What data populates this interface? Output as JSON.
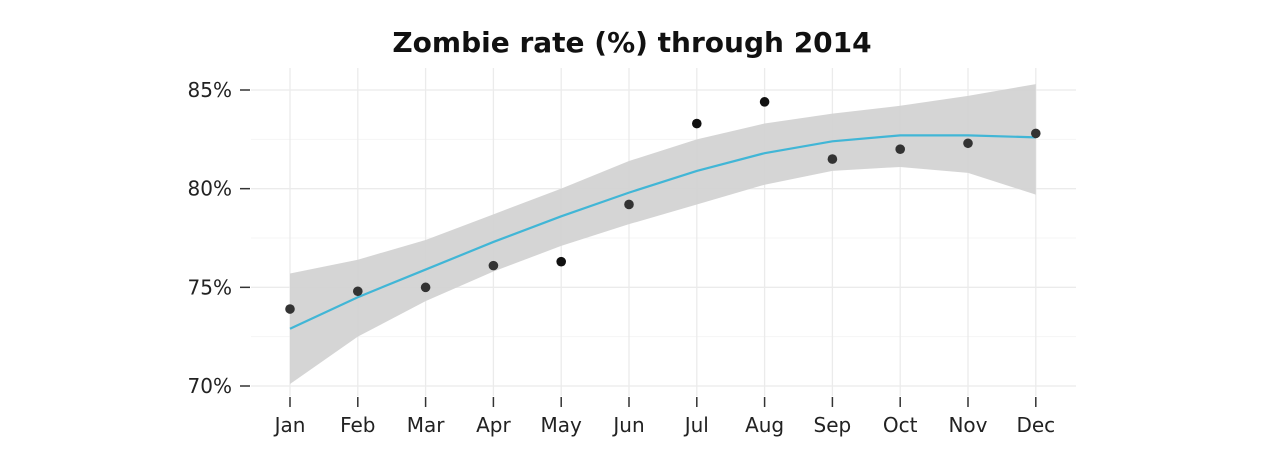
{
  "chart_data": {
    "type": "scatter",
    "title": "Zombie rate (%) through 2014",
    "xlabel": "",
    "ylabel": "",
    "categories": [
      "Jan",
      "Feb",
      "Mar",
      "Apr",
      "May",
      "Jun",
      "Jul",
      "Aug",
      "Sep",
      "Oct",
      "Nov",
      "Dec"
    ],
    "y_ticks": [
      70,
      75,
      80,
      85
    ],
    "y_tick_labels": [
      "70%",
      "75%",
      "80%",
      "85%"
    ],
    "ylim": [
      69.8,
      86.2
    ],
    "grid": true,
    "legend": "none",
    "series": [
      {
        "kind": "points",
        "values": [
          73.9,
          74.8,
          75.0,
          76.1,
          76.3,
          79.2,
          83.3,
          84.4,
          81.5,
          82.0,
          82.3,
          82.8
        ]
      },
      {
        "kind": "smooth-line",
        "values": [
          72.9,
          74.5,
          75.9,
          77.3,
          78.6,
          79.8,
          80.9,
          81.8,
          82.4,
          82.7,
          82.7,
          82.6
        ]
      },
      {
        "kind": "confidence-band",
        "upper": [
          75.7,
          76.4,
          77.4,
          78.7,
          80.0,
          81.4,
          82.5,
          83.3,
          83.8,
          84.2,
          84.7,
          85.3
        ],
        "lower": [
          70.1,
          72.5,
          74.3,
          75.8,
          77.1,
          78.2,
          79.2,
          80.2,
          80.9,
          81.1,
          80.8,
          79.7
        ]
      }
    ],
    "colors": {
      "line": "#41b6d6",
      "band": "#d3d3d3",
      "points": "#333333",
      "grid": "#ebebeb",
      "axis": "#333333"
    }
  }
}
